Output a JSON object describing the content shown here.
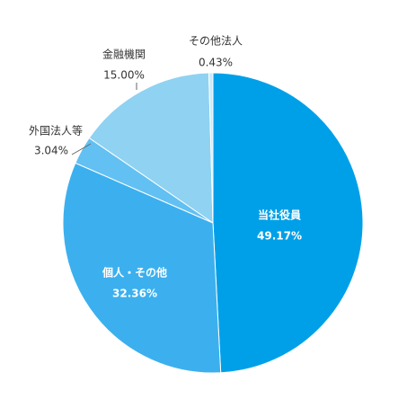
{
  "chart_data": {
    "type": "pie",
    "categories": [
      "当社役員",
      "個人・その他",
      "外国法人等",
      "金融機関",
      "その他法人"
    ],
    "values": [
      49.17,
      32.36,
      3.04,
      15.0,
      0.43
    ],
    "value_labels": [
      "49.17%",
      "32.36%",
      "3.04%",
      "15.00%",
      "0.43%"
    ],
    "colors": [
      "#00a0e9",
      "#3cb0ee",
      "#62c0f2",
      "#8fd2f2",
      "#c9eaf9"
    ]
  }
}
